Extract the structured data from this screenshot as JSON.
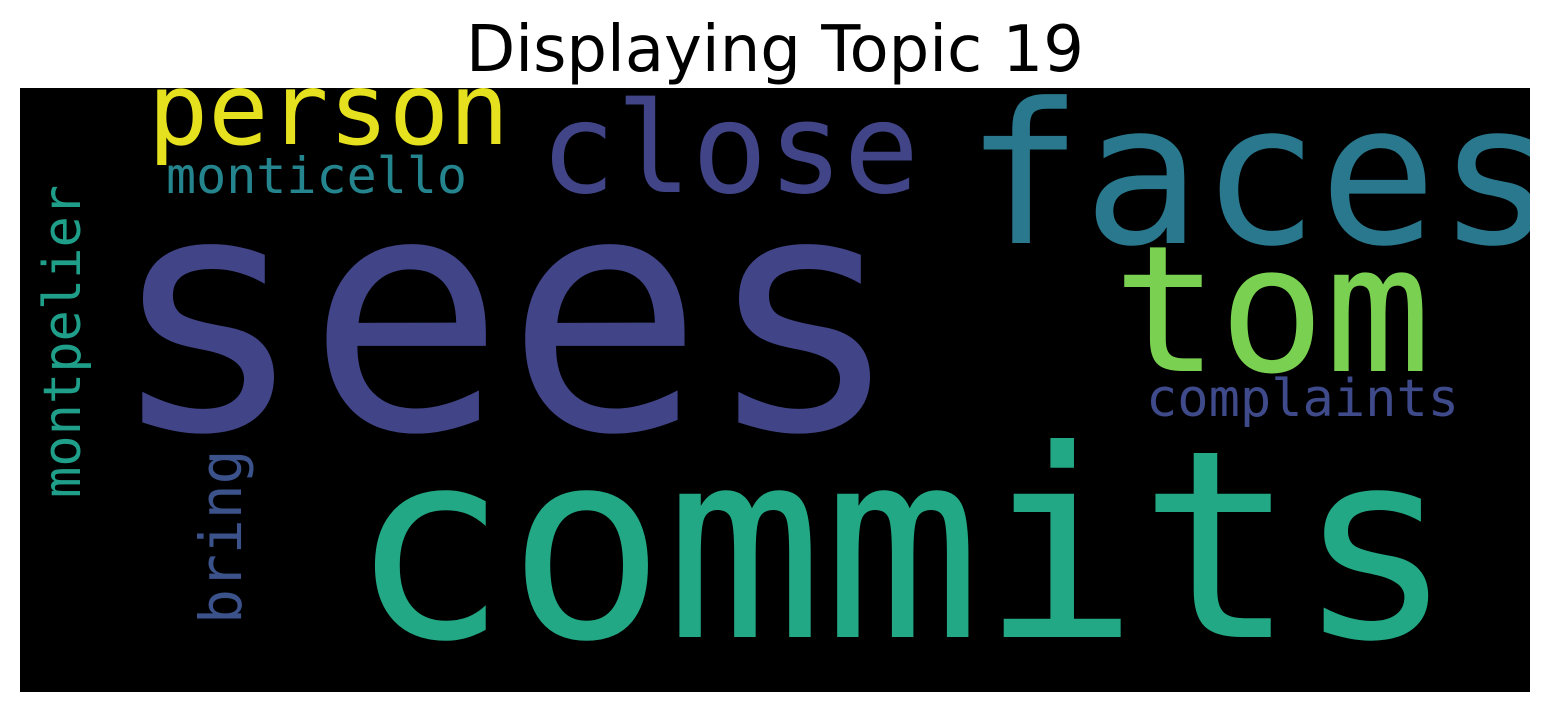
{
  "title": "Displaying Topic 19",
  "words": {
    "sees": {
      "text": "sees",
      "color": "#414487"
    },
    "commits": {
      "text": "commits",
      "color": "#22a884"
    },
    "faces": {
      "text": "faces",
      "color": "#2a788e"
    },
    "tom": {
      "text": "tom",
      "color": "#7ad151"
    },
    "close": {
      "text": "close",
      "color": "#414487"
    },
    "person": {
      "text": "person",
      "color": "#e6e11f"
    },
    "monticello": {
      "text": "monticello",
      "color": "#25858e"
    },
    "montpelier": {
      "text": "montpelier",
      "color": "#1f9e89"
    },
    "complaints": {
      "text": "complaints",
      "color": "#3e4a89"
    },
    "bring": {
      "text": "bring",
      "color": "#3b528b"
    }
  },
  "colors": {
    "background": "#000000",
    "title": "#000000"
  }
}
